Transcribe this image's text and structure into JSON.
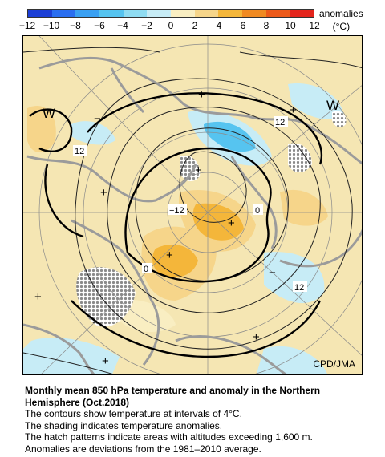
{
  "legend": {
    "ticks": [
      "−12",
      "−10",
      "−8",
      "−6",
      "−4",
      "−2",
      "0",
      "2",
      "4",
      "6",
      "8",
      "10",
      "12"
    ],
    "label_line1": "anomalies",
    "label_line2": "(°C)",
    "colors": [
      "#1c3fd6",
      "#2a6ef0",
      "#3aa0f2",
      "#56c4f0",
      "#8fdcf2",
      "#c7ecf6",
      "#eef8f8",
      "#f9eec2",
      "#f6d58a",
      "#f4b63a",
      "#f08a22",
      "#ec5a1a",
      "#e3251c"
    ]
  },
  "map": {
    "contour_labels": [
      "12",
      "12",
      "−12",
      "0",
      "0",
      "12"
    ],
    "markers": [
      "W",
      "W",
      "+",
      "+",
      "+",
      "+",
      "+",
      "+",
      "+",
      "+",
      "+",
      "−",
      "−",
      "−",
      "−"
    ],
    "credit": "CPD/JMA"
  },
  "caption": {
    "title_line1": "Monthly mean 850 hPa temperature and anomaly in the Northern",
    "title_line2": "Hemisphere (Oct.2018)",
    "line1": "The contours show temperature at intervals of 4°C.",
    "line2": "The shading indicates temperature anomalies.",
    "line3": "The hatch patterns indicate areas with altitudes exceeding 1,600 m.",
    "line4": "Anomalies are deviations from the 1981–2010 average."
  }
}
